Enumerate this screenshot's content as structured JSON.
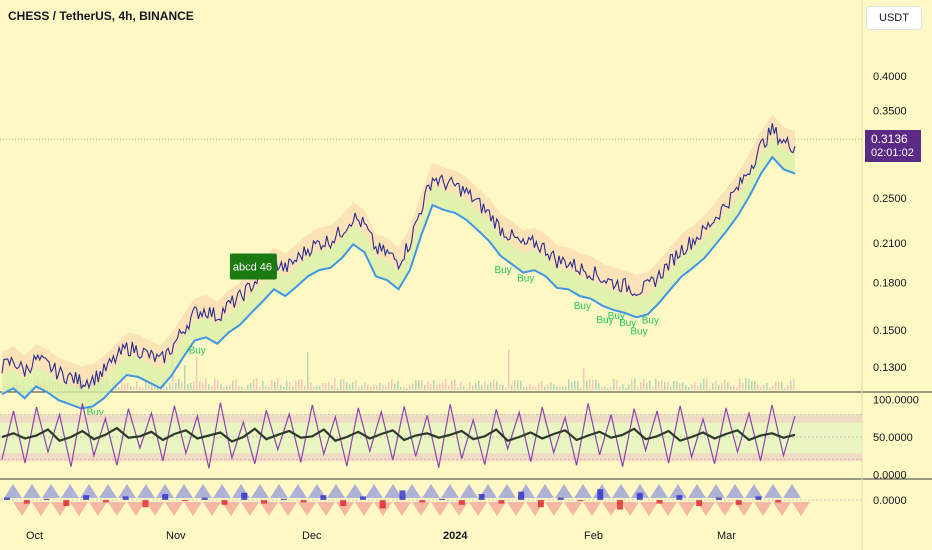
{
  "header": {
    "title": "CHESS / TetherUS, 4h, BINANCE",
    "currency": "USDT"
  },
  "price_tag": {
    "price": "0.3136",
    "countdown": "02:01:02"
  },
  "colors": {
    "background": "#fef9c4",
    "price_line": "#2b2d8e",
    "cloud_up": "#3f95e6",
    "cloud_fill": "#cfe6f5",
    "band_warm": "#f8c8a8",
    "band_cool": "#d8f0a8",
    "buy": "#22c55e",
    "abcd_bg": "#1b7a12",
    "osc_purple": "#8e44ad",
    "osc_dark": "#2d3a2d",
    "tri_up": "#9aa0d8",
    "tri_down": "#f4a89a"
  },
  "annotations": {
    "abcd_label": "abcd 46",
    "buy_labels": [
      {
        "text": "Buy",
        "x_index": 0
      },
      {
        "text": "Buy",
        "x_index": 1
      },
      {
        "text": "Buy",
        "x_index": 2
      },
      {
        "text": "Buy",
        "x_index": 3
      },
      {
        "text": "Buy",
        "x_index": 4
      },
      {
        "text": "Buy",
        "x_index": 5
      },
      {
        "text": "Buy",
        "x_index": 6
      },
      {
        "text": "Buy",
        "x_index": 7
      },
      {
        "text": "Buy",
        "x_index": 8
      },
      {
        "text": "Buy",
        "x_index": 9
      }
    ]
  },
  "chart_data": [
    {
      "type": "line",
      "title": "CHESS / TetherUS, 4h, BINANCE",
      "y_scale": "log",
      "ylim": [
        0.118,
        0.46
      ],
      "y_ticks": [
        "0.4000",
        "0.3500",
        "0.2500",
        "0.2100",
        "0.1800",
        "0.1500",
        "0.1300"
      ],
      "x_ticks": [
        "Oct",
        "Nov",
        "Dec",
        "2024",
        "Feb",
        "Mar"
      ],
      "series": [
        {
          "values": [
            0.13,
            0.133,
            0.128,
            0.134,
            0.131,
            0.127,
            0.125,
            0.123,
            0.124,
            0.128,
            0.134,
            0.14,
            0.139,
            0.136,
            0.133,
            0.14,
            0.15,
            0.16,
            0.162,
            0.158,
            0.165,
            0.17,
            0.178,
            0.186,
            0.195,
            0.19,
            0.197,
            0.205,
            0.21,
            0.212,
            0.22,
            0.232,
            0.225,
            0.205,
            0.202,
            0.195,
            0.21,
            0.24,
            0.27,
            0.265,
            0.262,
            0.255,
            0.245,
            0.235,
            0.222,
            0.215,
            0.208,
            0.21,
            0.205,
            0.196,
            0.195,
            0.19,
            0.188,
            0.183,
            0.18,
            0.178,
            0.175,
            0.177,
            0.185,
            0.195,
            0.205,
            0.212,
            0.22,
            0.232,
            0.245,
            0.26,
            0.28,
            0.305,
            0.325,
            0.31,
            0.305
          ]
        }
      ]
    },
    {
      "type": "line",
      "title": "",
      "ylim": [
        -5,
        105
      ],
      "y_ticks": [
        "100.0000",
        "50.0000",
        "0.0000"
      ],
      "series": [
        {
          "values": [
            50,
            55,
            48,
            52,
            60,
            45,
            50,
            58,
            47,
            53,
            62,
            49,
            51,
            57,
            46,
            54,
            59,
            48,
            52,
            56,
            44,
            50,
            61,
            47,
            53,
            58,
            49,
            51,
            60,
            45,
            50,
            57,
            48,
            54,
            59,
            46,
            52,
            55,
            49,
            53,
            58,
            47,
            51,
            60,
            45,
            50,
            56,
            48,
            54,
            59,
            46,
            52,
            57,
            49,
            53,
            61,
            47,
            51,
            58,
            45,
            50,
            56,
            48,
            54,
            59,
            46,
            52,
            55,
            49,
            53
          ]
        },
        {
          "values": [
            20,
            85,
            15,
            90,
            30,
            80,
            10,
            95,
            25,
            75,
            12,
            88,
            35,
            82,
            18,
            92,
            28,
            78,
            8,
            96,
            22,
            70,
            14,
            86,
            33,
            81,
            16,
            93,
            27,
            77,
            11,
            89,
            31,
            84,
            19,
            91,
            24,
            79,
            9,
            94,
            21,
            73,
            13,
            87,
            34,
            83,
            17,
            90,
            29,
            76,
            12,
            95,
            26,
            80,
            10,
            88,
            32,
            85,
            15,
            92,
            23,
            74,
            14,
            89,
            30,
            82,
            18,
            93,
            25,
            78
          ]
        }
      ]
    },
    {
      "type": "bar",
      "title": "",
      "y_ticks": [
        "0.0000"
      ],
      "series": [
        {
          "values": [
            0.2,
            -0.3,
            0.1,
            -0.5,
            0.4,
            -0.2,
            0.3,
            -0.6,
            0.5,
            -0.1,
            0.2,
            -0.4,
            0.6,
            -0.3,
            0.1,
            -0.2,
            0.4,
            -0.5,
            0.3,
            -0.7,
            0.8,
            -0.2,
            0.1,
            -0.4,
            0.5,
            -0.3,
            0.7,
            -0.6,
            0.2,
            -0.1,
            0.9,
            -0.8,
            0.6,
            -0.3,
            0.4,
            -0.5,
            0.2,
            -0.4,
            0.3,
            -0.2
          ]
        }
      ]
    }
  ]
}
